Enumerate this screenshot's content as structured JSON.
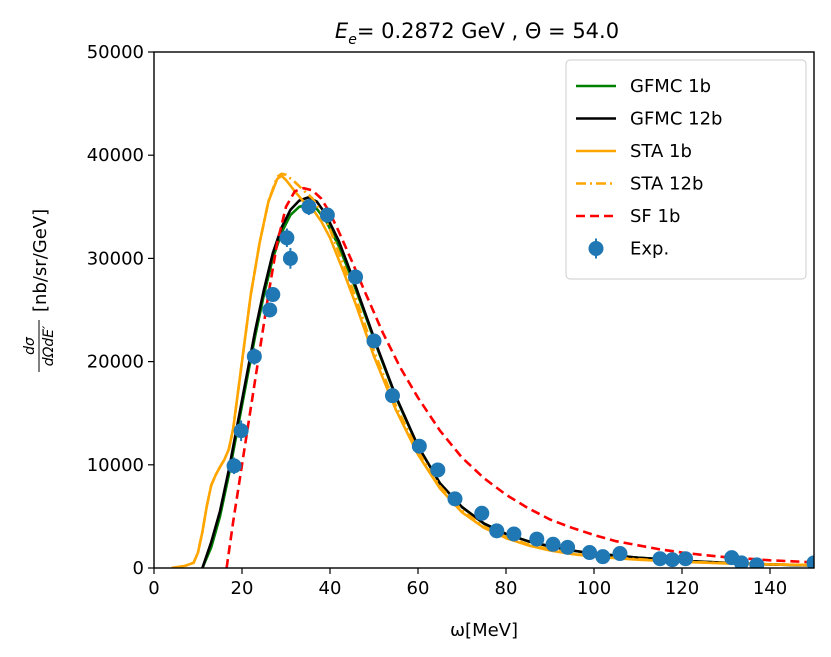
{
  "chart_data": {
    "type": "line",
    "title": {
      "symbol": "E",
      "subscript": "e",
      "text": "= 0.2872 GeV , Θ = 54.0"
    },
    "xlabel": "ω[MeV]",
    "ylabel": {
      "fraction_num": "dσ",
      "fraction_den": "dΩdE′",
      "units": "[nb/sr/GeV]"
    },
    "xlim": [
      0,
      150
    ],
    "ylim": [
      0,
      50000
    ],
    "xticks": [
      0,
      20,
      40,
      60,
      80,
      100,
      120,
      140
    ],
    "yticks": [
      0,
      10000,
      20000,
      30000,
      40000,
      50000
    ],
    "legend_position": "top-right",
    "series": [
      {
        "name": "GFMC 1b",
        "color": "#008000",
        "style": "solid",
        "x": [
          11,
          13,
          15,
          17,
          19,
          21,
          23,
          25,
          27,
          29,
          31,
          33,
          35,
          37,
          39,
          42,
          45,
          48,
          51,
          55,
          60,
          65,
          70,
          75,
          80,
          85,
          90,
          95,
          100,
          105,
          110,
          115,
          120,
          125,
          130,
          135,
          140,
          145,
          150
        ],
        "y": [
          0,
          2000,
          5000,
          9000,
          13500,
          18000,
          22500,
          26500,
          30000,
          32500,
          34200,
          35000,
          35200,
          34800,
          33700,
          31200,
          28000,
          24500,
          21000,
          16500,
          11800,
          8200,
          5900,
          4300,
          3300,
          2600,
          2100,
          1700,
          1400,
          1200,
          1000,
          850,
          700,
          600,
          500,
          420,
          350,
          300,
          250
        ]
      },
      {
        "name": "GFMC 12b",
        "color": "#000000",
        "style": "solid",
        "x": [
          11,
          13,
          15,
          17,
          19,
          21,
          23,
          25,
          27,
          29,
          31,
          33,
          35,
          37,
          39,
          42,
          45,
          48,
          51,
          55,
          60,
          65,
          70,
          75,
          80,
          85,
          90,
          95,
          100,
          105,
          110,
          115,
          120,
          125,
          130,
          135,
          140,
          145,
          150
        ],
        "y": [
          0,
          2500,
          5500,
          9500,
          14000,
          18500,
          23000,
          27000,
          30500,
          33000,
          34700,
          35600,
          35900,
          35500,
          34300,
          31700,
          28300,
          24700,
          21100,
          16600,
          11800,
          8200,
          5900,
          4300,
          3300,
          2600,
          2100,
          1700,
          1400,
          1200,
          1000,
          850,
          700,
          600,
          500,
          420,
          350,
          300,
          250
        ]
      },
      {
        "name": "STA 1b",
        "color": "#ffa500",
        "style": "solid",
        "x": [
          4,
          7,
          9,
          10,
          11,
          12,
          13,
          14,
          15,
          16,
          17,
          18,
          20,
          22,
          24,
          26,
          28,
          29,
          30,
          32,
          34,
          36,
          38,
          40,
          43,
          46,
          50,
          55,
          60,
          65,
          70,
          75,
          80,
          85,
          90,
          95,
          100,
          110,
          120,
          130,
          140,
          150
        ],
        "y": [
          0,
          200,
          500,
          1500,
          3500,
          6000,
          8000,
          9000,
          9800,
          10500,
          11500,
          13500,
          20000,
          26500,
          31500,
          35500,
          37700,
          38000,
          37600,
          36500,
          35500,
          34800,
          33600,
          32000,
          28800,
          25400,
          20500,
          15300,
          11000,
          7700,
          5400,
          3900,
          2900,
          2200,
          1700,
          1350,
          1100,
          800,
          600,
          450,
          350,
          280
        ]
      },
      {
        "name": "STA 12b",
        "color": "#ffa500",
        "style": "dashdot",
        "x": [
          4,
          7,
          9,
          10,
          11,
          12,
          13,
          14,
          15,
          16,
          17,
          18,
          20,
          22,
          24,
          26,
          28,
          29,
          30,
          32,
          34,
          36,
          38,
          40,
          43,
          46,
          50,
          55,
          60,
          65,
          70,
          75,
          80,
          85,
          90,
          95,
          100,
          110,
          120,
          130,
          140,
          150
        ],
        "y": [
          0,
          200,
          500,
          1500,
          3500,
          6000,
          8000,
          9000,
          9800,
          10500,
          11500,
          13500,
          20000,
          26500,
          31500,
          35500,
          37900,
          38200,
          38100,
          37400,
          36600,
          35800,
          34500,
          32800,
          29500,
          26000,
          21000,
          15700,
          11300,
          7900,
          5600,
          4000,
          3000,
          2300,
          1800,
          1400,
          1150,
          850,
          620,
          470,
          360,
          290
        ]
      },
      {
        "name": "SF 1b",
        "color": "#ff0000",
        "style": "dashed",
        "x": [
          16.5,
          18,
          20,
          22,
          24,
          26,
          28,
          30,
          32,
          34,
          36,
          38,
          40,
          42,
          45,
          48,
          52,
          56,
          60,
          65,
          70,
          75,
          80,
          85,
          90,
          95,
          100,
          105,
          110,
          115,
          120,
          125,
          130,
          135,
          140,
          145,
          150
        ],
        "y": [
          0,
          4500,
          10000,
          15500,
          21000,
          26500,
          31500,
          35000,
          36500,
          36800,
          36600,
          35800,
          34400,
          32600,
          29700,
          26700,
          22800,
          19400,
          16500,
          13300,
          10700,
          8700,
          7100,
          5800,
          4700,
          3900,
          3200,
          2600,
          2200,
          1800,
          1500,
          1250,
          1050,
          900,
          750,
          650,
          550
        ]
      }
    ],
    "experimental": {
      "name": "Exp.",
      "color": "#1f77b4",
      "x": [
        18.2,
        19.8,
        22.8,
        26.3,
        27.0,
        30.2,
        31.0,
        35.2,
        39.4,
        45.8,
        50.0,
        54.2,
        60.3,
        64.5,
        68.4,
        74.5,
        77.9,
        81.8,
        87.0,
        90.7,
        94.0,
        99.0,
        102.0,
        105.9,
        115.0,
        117.8,
        120.8,
        131.3,
        133.5,
        137.0,
        150.0
      ],
      "y": [
        9900,
        13300,
        20500,
        25000,
        26500,
        32000,
        30000,
        35000,
        34200,
        28200,
        22000,
        16700,
        11800,
        9500,
        6700,
        5300,
        3600,
        3300,
        2800,
        2300,
        2000,
        1500,
        1100,
        1400,
        900,
        800,
        900,
        1000,
        500,
        300,
        500
      ],
      "yerr": [
        800,
        1000,
        800,
        700,
        700,
        900,
        1000,
        800,
        600,
        600,
        500,
        400,
        350,
        300,
        250,
        250,
        200,
        200,
        200,
        150,
        150,
        150,
        150,
        150,
        150,
        100,
        100,
        150,
        100,
        100,
        100
      ]
    }
  }
}
